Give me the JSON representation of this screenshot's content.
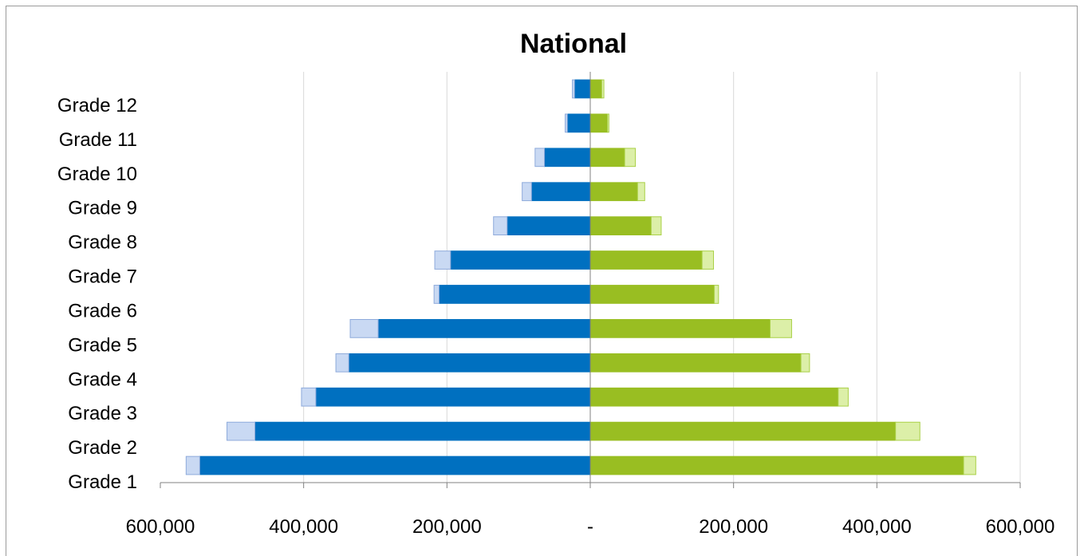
{
  "chart_data": {
    "type": "bar",
    "orientation": "horizontal",
    "layout": "population-pyramid (diverging, stacked)",
    "title": "National",
    "categories": [
      "Grade 1",
      "Grade 2",
      "Grade 3",
      "Grade 4",
      "Grade 5",
      "Grade 6",
      "Grade 7",
      "Grade 8",
      "Grade 9",
      "Grade 10",
      "Grade 11",
      "Grade 12"
    ],
    "left_side": {
      "series": [
        {
          "color": "#0070c0",
          "values": [
            545000,
            468000,
            383000,
            337000,
            296000,
            211000,
            195000,
            116000,
            82000,
            64000,
            32000,
            22000
          ]
        },
        {
          "color": "#c9d9f3",
          "values": [
            19000,
            39000,
            20000,
            18000,
            39000,
            7000,
            22000,
            19000,
            13000,
            13000,
            3000,
            3000
          ]
        }
      ]
    },
    "right_side": {
      "series": [
        {
          "color": "#99be22",
          "values": [
            521000,
            426000,
            346000,
            294000,
            251000,
            173000,
            156000,
            85000,
            66000,
            48000,
            24000,
            16000
          ]
        },
        {
          "color": "#dcefa8",
          "values": [
            17000,
            34000,
            14000,
            12000,
            30000,
            6000,
            16000,
            14000,
            10000,
            15000,
            2000,
            3000
          ]
        }
      ]
    },
    "xlim": [
      -600000,
      600000
    ],
    "x_tick_labels": [
      "600,000",
      "400,000",
      "200,000",
      "-",
      "200,000",
      "400,000",
      "600,000"
    ],
    "x_tick_values": [
      -600000,
      -400000,
      -200000,
      0,
      200000,
      400000,
      600000
    ],
    "grid": "vertical",
    "legend": "none"
  }
}
